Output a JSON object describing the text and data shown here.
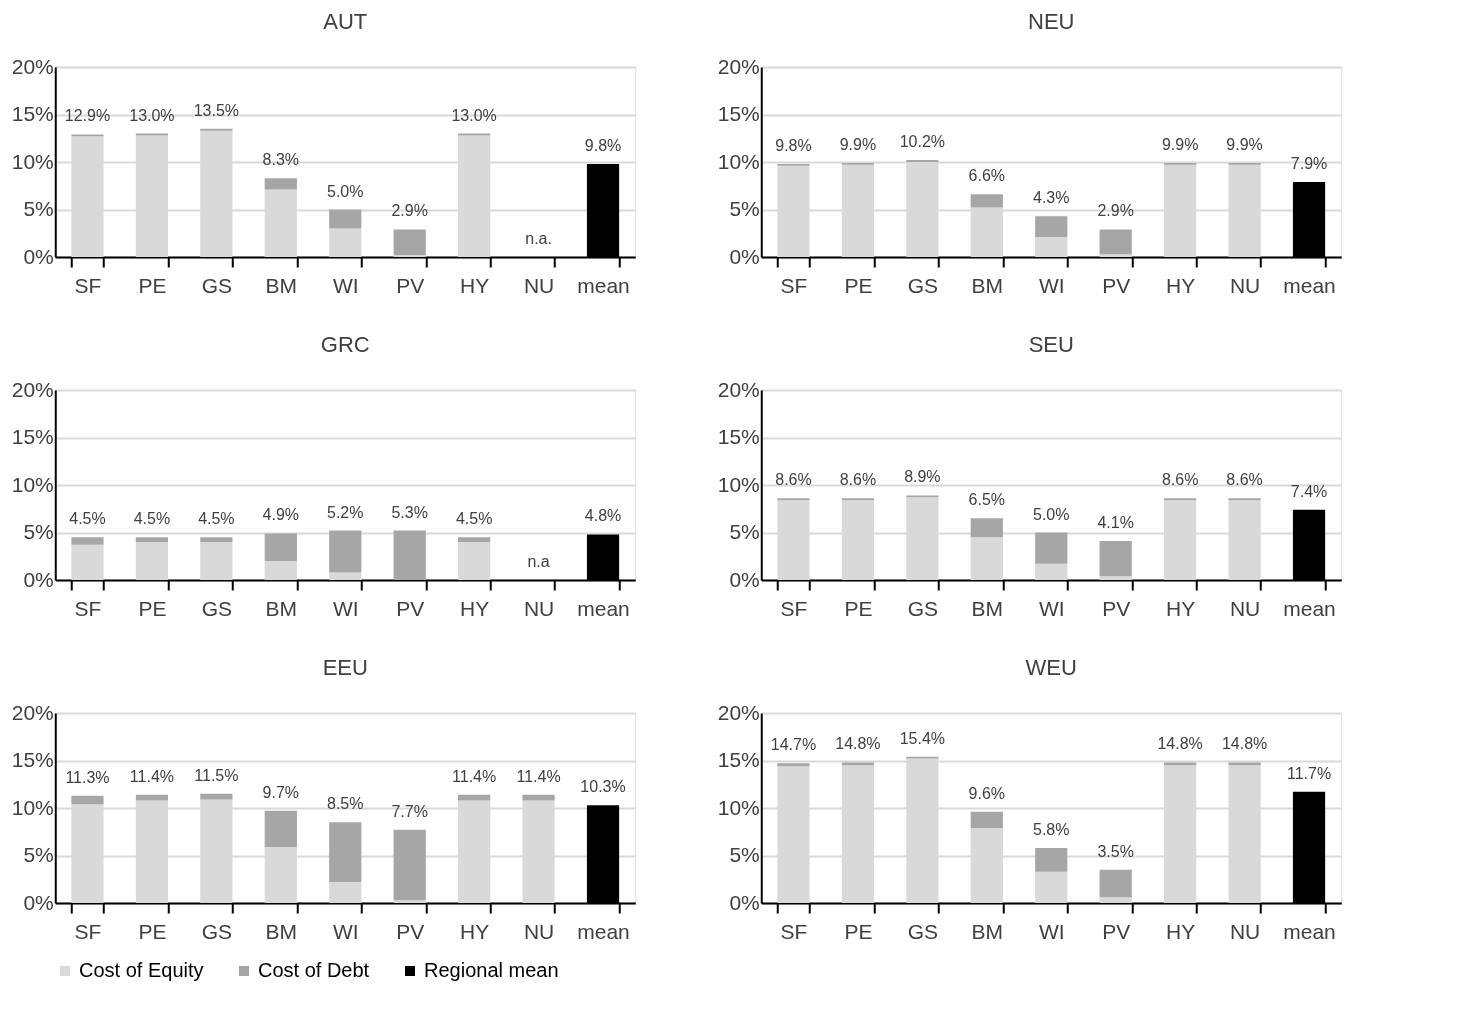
{
  "chart_data": [
    {
      "type": "bar",
      "stacked": true,
      "title": "AUT",
      "categories": [
        "SF",
        "PE",
        "GS",
        "BM",
        "WI",
        "PV",
        "HY",
        "NU",
        "mean"
      ],
      "series": [
        {
          "name": "Cost of Equity",
          "color": "#d9d9d9",
          "values": [
            12.7,
            12.8,
            13.3,
            7.1,
            3.0,
            0.2,
            12.8,
            null,
            null
          ]
        },
        {
          "name": "Cost of Debt",
          "color": "#a6a6a6",
          "values": [
            0.2,
            0.2,
            0.2,
            1.2,
            2.0,
            2.7,
            0.2,
            null,
            null
          ]
        },
        {
          "name": "Regional mean",
          "color": "#000000",
          "values": [
            null,
            null,
            null,
            null,
            null,
            null,
            null,
            null,
            9.8
          ]
        }
      ],
      "totals": [
        "12.9%",
        "13.0%",
        "13.5%",
        "8.3%",
        "5.0%",
        "2.9%",
        "13.0%",
        "n.a.",
        "9.8%"
      ],
      "ylim": [
        0,
        20
      ],
      "yticks": [
        {
          "value": 0,
          "label": "0%"
        },
        {
          "value": 5,
          "label": "5%"
        },
        {
          "value": 10,
          "label": "10%"
        },
        {
          "value": 15,
          "label": "15%"
        },
        {
          "value": 20,
          "label": "20%"
        }
      ],
      "grid": "y",
      "legend": "bottom"
    },
    {
      "type": "bar",
      "stacked": true,
      "title": "NEU",
      "categories": [
        "SF",
        "PE",
        "GS",
        "BM",
        "WI",
        "PV",
        "HY",
        "NU",
        "mean"
      ],
      "series": [
        {
          "name": "Cost of Equity",
          "color": "#d9d9d9",
          "values": [
            9.6,
            9.7,
            10.0,
            5.2,
            2.1,
            0.3,
            9.7,
            9.7,
            null
          ]
        },
        {
          "name": "Cost of Debt",
          "color": "#a6a6a6",
          "values": [
            0.2,
            0.2,
            0.2,
            1.4,
            2.2,
            2.6,
            0.2,
            0.2,
            null
          ]
        },
        {
          "name": "Regional mean",
          "color": "#000000",
          "values": [
            null,
            null,
            null,
            null,
            null,
            null,
            null,
            null,
            7.9
          ]
        }
      ],
      "totals": [
        "9.8%",
        "9.9%",
        "10.2%",
        "6.6%",
        "4.3%",
        "2.9%",
        "9.9%",
        "9.9%",
        "7.9%"
      ],
      "ylim": [
        0,
        20
      ],
      "yticks": [
        {
          "value": 0,
          "label": "0%"
        },
        {
          "value": 5,
          "label": "5%"
        },
        {
          "value": 10,
          "label": "10%"
        },
        {
          "value": 15,
          "label": "15%"
        },
        {
          "value": 20,
          "label": "20%"
        }
      ],
      "grid": "y",
      "legend": "bottom"
    },
    {
      "type": "bar",
      "stacked": true,
      "title": "GRC",
      "categories": [
        "SF",
        "PE",
        "GS",
        "BM",
        "WI",
        "PV",
        "HY",
        "NU",
        "mean"
      ],
      "series": [
        {
          "name": "Cost of Equity",
          "color": "#d9d9d9",
          "values": [
            3.7,
            4.0,
            4.0,
            2.0,
            0.8,
            null,
            4.0,
            null,
            null
          ]
        },
        {
          "name": "Cost of Debt",
          "color": "#a6a6a6",
          "values": [
            0.8,
            0.5,
            0.5,
            2.9,
            4.4,
            5.2,
            0.5,
            null,
            null
          ]
        },
        {
          "name": "Regional mean",
          "color": "#000000",
          "values": [
            null,
            null,
            null,
            null,
            null,
            null,
            null,
            null,
            4.8
          ]
        }
      ],
      "totals": [
        "4.5%",
        "4.5%",
        "4.5%",
        "4.9%",
        "5.2%",
        "5.3%",
        "4.5%",
        "n.a",
        "4.8%"
      ],
      "ylim": [
        0,
        20
      ],
      "yticks": [
        {
          "value": 0,
          "label": "0%"
        },
        {
          "value": 5,
          "label": "5%"
        },
        {
          "value": 10,
          "label": "10%"
        },
        {
          "value": 15,
          "label": "15%"
        },
        {
          "value": 20,
          "label": "20%"
        }
      ],
      "grid": "y",
      "legend": "bottom"
    },
    {
      "type": "bar",
      "stacked": true,
      "title": "SEU",
      "categories": [
        "SF",
        "PE",
        "GS",
        "BM",
        "WI",
        "PV",
        "HY",
        "NU",
        "mean"
      ],
      "series": [
        {
          "name": "Cost of Equity",
          "color": "#d9d9d9",
          "values": [
            8.4,
            8.4,
            8.7,
            4.5,
            1.7,
            0.4,
            8.4,
            8.4,
            null
          ]
        },
        {
          "name": "Cost of Debt",
          "color": "#a6a6a6",
          "values": [
            0.2,
            0.2,
            0.2,
            2.0,
            3.3,
            3.7,
            0.2,
            0.2,
            null
          ]
        },
        {
          "name": "Regional mean",
          "color": "#000000",
          "values": [
            null,
            null,
            null,
            null,
            null,
            null,
            null,
            null,
            7.4
          ]
        }
      ],
      "totals": [
        "8.6%",
        "8.6%",
        "8.9%",
        "6.5%",
        "5.0%",
        "4.1%",
        "8.6%",
        "8.6%",
        "7.4%"
      ],
      "ylim": [
        0,
        20
      ],
      "yticks": [
        {
          "value": 0,
          "label": "0%"
        },
        {
          "value": 5,
          "label": "5%"
        },
        {
          "value": 10,
          "label": "10%"
        },
        {
          "value": 15,
          "label": "15%"
        },
        {
          "value": 20,
          "label": "20%"
        }
      ],
      "grid": "y",
      "legend": "bottom"
    },
    {
      "type": "bar",
      "stacked": true,
      "title": "EEU",
      "categories": [
        "SF",
        "PE",
        "GS",
        "BM",
        "WI",
        "PV",
        "HY",
        "NU",
        "mean"
      ],
      "series": [
        {
          "name": "Cost of Equity",
          "color": "#d9d9d9",
          "values": [
            10.4,
            10.8,
            10.9,
            5.9,
            2.2,
            0.3,
            10.8,
            10.8,
            null
          ]
        },
        {
          "name": "Cost of Debt",
          "color": "#a6a6a6",
          "values": [
            0.9,
            0.6,
            0.6,
            3.8,
            6.3,
            7.4,
            0.6,
            0.6,
            null
          ]
        },
        {
          "name": "Regional mean",
          "color": "#000000",
          "values": [
            null,
            null,
            null,
            null,
            null,
            null,
            null,
            null,
            10.3
          ]
        }
      ],
      "totals": [
        "11.3%",
        "11.4%",
        "11.5%",
        "9.7%",
        "8.5%",
        "7.7%",
        "11.4%",
        "11.4%",
        "10.3%"
      ],
      "ylim": [
        0,
        20
      ],
      "yticks": [
        {
          "value": 0,
          "label": "0%"
        },
        {
          "value": 5,
          "label": "5%"
        },
        {
          "value": 10,
          "label": "10%"
        },
        {
          "value": 15,
          "label": "15%"
        },
        {
          "value": 20,
          "label": "20%"
        }
      ],
      "grid": "y",
      "legend": "bottom"
    },
    {
      "type": "bar",
      "stacked": true,
      "title": "WEU",
      "categories": [
        "SF",
        "PE",
        "GS",
        "BM",
        "WI",
        "PV",
        "HY",
        "NU",
        "mean"
      ],
      "series": [
        {
          "name": "Cost of Equity",
          "color": "#d9d9d9",
          "values": [
            14.4,
            14.5,
            15.2,
            7.9,
            3.3,
            0.6,
            14.5,
            14.5,
            null
          ]
        },
        {
          "name": "Cost of Debt",
          "color": "#a6a6a6",
          "values": [
            0.3,
            0.3,
            0.2,
            1.7,
            2.5,
            2.9,
            0.3,
            0.3,
            null
          ]
        },
        {
          "name": "Regional mean",
          "color": "#000000",
          "values": [
            null,
            null,
            null,
            null,
            null,
            null,
            null,
            null,
            11.7
          ]
        }
      ],
      "totals": [
        "14.7%",
        "14.8%",
        "15.4%",
        "9.6%",
        "5.8%",
        "3.5%",
        "14.8%",
        "14.8%",
        "11.7%"
      ],
      "ylim": [
        0,
        20
      ],
      "yticks": [
        {
          "value": 0,
          "label": "0%"
        },
        {
          "value": 5,
          "label": "5%"
        },
        {
          "value": 10,
          "label": "10%"
        },
        {
          "value": 15,
          "label": "15%"
        },
        {
          "value": 20,
          "label": "20%"
        }
      ],
      "grid": "y",
      "legend": "bottom"
    }
  ]
}
